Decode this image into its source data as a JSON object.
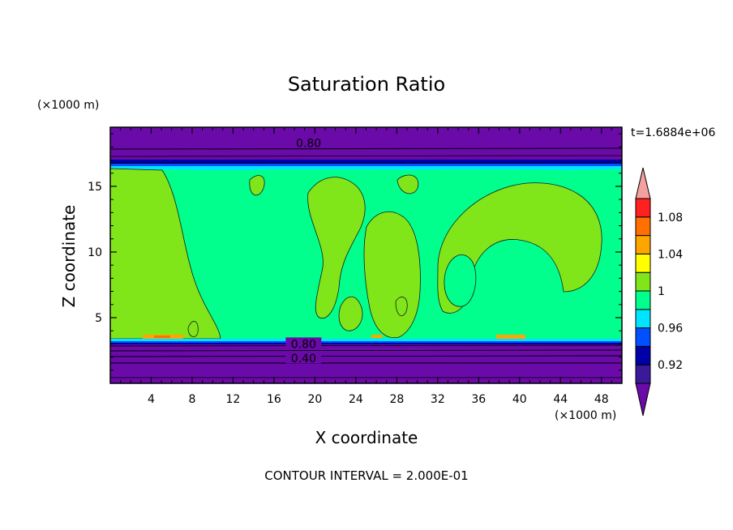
{
  "chart_data": {
    "type": "filled-contour",
    "title": "Saturation Ratio",
    "xlabel": "X coordinate",
    "ylabel": "Z coordinate",
    "x_unit": "(×1000 m)",
    "y_unit": "(×1000 m)",
    "time_label": "t=1.6884e+06",
    "footer": "CONTOUR INTERVAL = 2.000E-01",
    "xlim": [
      0,
      50
    ],
    "ylim": [
      0,
      19.5
    ],
    "x_ticks": [
      4,
      8,
      12,
      16,
      20,
      24,
      28,
      32,
      36,
      40,
      44,
      48
    ],
    "y_ticks": [
      5,
      10,
      15
    ],
    "contour_labels": [
      {
        "text": "0.80",
        "x": 17.8,
        "z": 18.3
      },
      {
        "text": "0.80",
        "x": 17.3,
        "z": 3.0
      },
      {
        "text": "0.40",
        "x": 17.3,
        "z": 1.9
      }
    ],
    "colorbar": {
      "labels": [
        "0.92",
        "0.96",
        "1",
        "1.04",
        "1.08"
      ],
      "levels": [
        0.92,
        0.94,
        0.96,
        0.98,
        1.0,
        1.02,
        1.04,
        1.06,
        1.08,
        1.1
      ],
      "colors": [
        "#3a1a9a",
        "#0000a8",
        "#0050ff",
        "#00e5ff",
        "#00ff8c",
        "#80e61a",
        "#ffff00",
        "#ffa500",
        "#ff7000",
        "#ff2020"
      ],
      "under_color": "#6a0aa8",
      "over_color": "#f5a0a0"
    },
    "fields": {
      "upper_dry_color": "#6a0aa8",
      "lower_dry_color": "#6a0aa8",
      "mid_color": "#00ff8c",
      "patch_color": "#80e61a",
      "warm_color": "#ffa500"
    }
  }
}
